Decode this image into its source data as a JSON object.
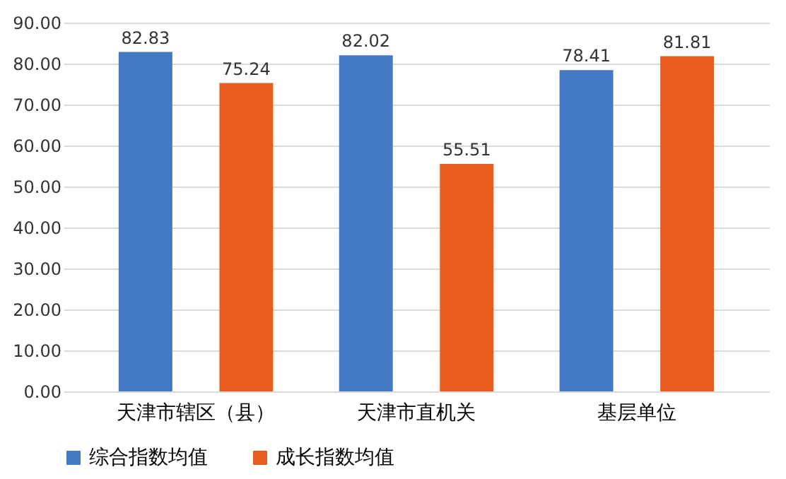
{
  "chart_data": {
    "type": "bar",
    "categories": [
      "天津市辖区（县）",
      "天津市直机关",
      "基层单位"
    ],
    "series": [
      {
        "name": "综合指数均值",
        "color": "#4479c4",
        "values": [
          82.83,
          82.02,
          78.41
        ]
      },
      {
        "name": "成长指数均值",
        "color": "#e85d1f",
        "values": [
          75.24,
          55.51,
          81.81
        ]
      }
    ],
    "ylim": [
      0,
      90
    ],
    "yticks": [
      {
        "value": 0,
        "label": "0.00"
      },
      {
        "value": 10,
        "label": "10.00"
      },
      {
        "value": 20,
        "label": "20.00"
      },
      {
        "value": 30,
        "label": "30.00"
      },
      {
        "value": 40,
        "label": "40.00"
      },
      {
        "value": 50,
        "label": "50.00"
      },
      {
        "value": 60,
        "label": "60.00"
      },
      {
        "value": 70,
        "label": "70.00"
      },
      {
        "value": 80,
        "label": "80.00"
      },
      {
        "value": 90,
        "label": "90.00"
      }
    ],
    "grid": "y",
    "legend": "bottom",
    "data_labels": true
  }
}
